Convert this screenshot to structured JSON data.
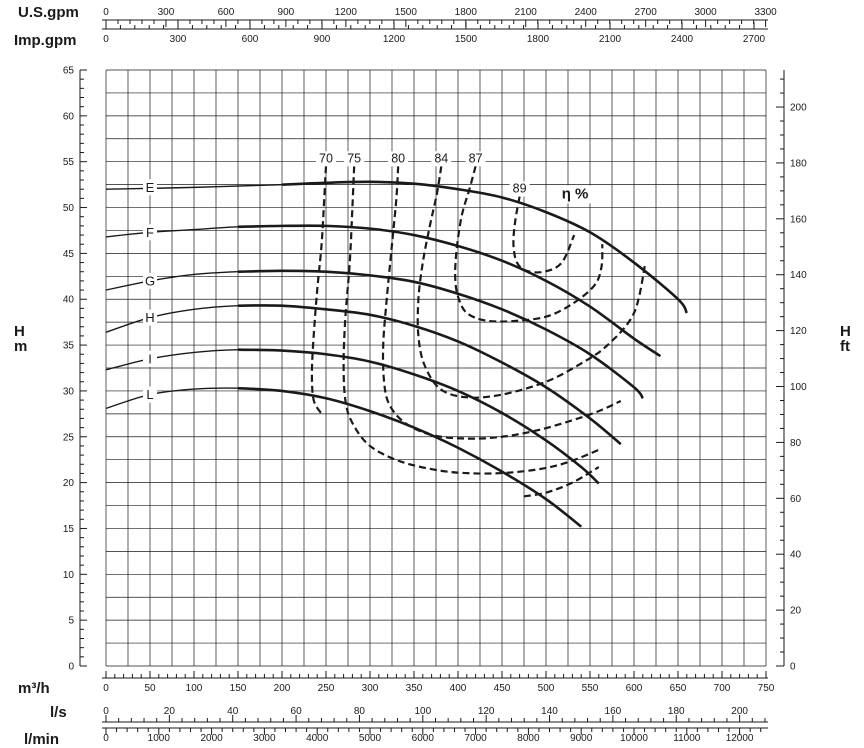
{
  "chart_data": {
    "type": "line",
    "title": "",
    "x_axis_bottom_main": {
      "unit": "m³/h",
      "range": [
        0,
        750
      ],
      "ticks": [
        "0",
        "50",
        "100",
        "150",
        "200",
        "250",
        "300",
        "350",
        "400",
        "450",
        "500",
        "550",
        "600",
        "650",
        "700",
        "750"
      ]
    },
    "x_axis_bottom_ls": {
      "unit": "l/s",
      "range": [
        0,
        208.33
      ],
      "ticks": [
        "0",
        "20",
        "40",
        "60",
        "80",
        "100",
        "120",
        "140",
        "160",
        "180",
        "200"
      ]
    },
    "x_axis_bottom_lmin": {
      "unit": "l/min",
      "range": [
        0,
        12500
      ],
      "ticks": [
        "0",
        "1000",
        "2000",
        "3000",
        "4000",
        "5000",
        "6000",
        "7000",
        "8000",
        "9000",
        "10000",
        "11000",
        "12000"
      ]
    },
    "x_axis_top_usgpm": {
      "unit": "U.S.gpm",
      "range": [
        0,
        3302
      ],
      "ticks": [
        "0",
        "300",
        "600",
        "900",
        "1200",
        "1500",
        "1800",
        "2100",
        "2400",
        "2700",
        "3000",
        "3300"
      ]
    },
    "x_axis_top_impgpm": {
      "unit": "Imp.gpm",
      "range": [
        0,
        2750
      ],
      "ticks": [
        "0",
        "300",
        "600",
        "900",
        "1200",
        "1500",
        "1800",
        "2100",
        "2400",
        "2700"
      ]
    },
    "y_axis_left": {
      "unit": "H\nm",
      "range": [
        0,
        65
      ],
      "ticks": [
        "0",
        "5",
        "10",
        "15",
        "20",
        "25",
        "30",
        "35",
        "40",
        "45",
        "50",
        "55",
        "60",
        "65"
      ]
    },
    "y_axis_right": {
      "unit": "H\nft",
      "range": [
        0,
        213.25
      ],
      "ticks": [
        "0",
        "20",
        "40",
        "60",
        "80",
        "100",
        "120",
        "140",
        "160",
        "180",
        "200"
      ]
    },
    "grid": true,
    "series": [
      {
        "name": "E",
        "x": [
          0,
          100,
          200,
          250,
          300,
          350,
          400,
          450,
          500,
          550,
          600,
          650,
          660
        ],
        "y": [
          52.0,
          52.2,
          52.5,
          52.7,
          52.8,
          52.6,
          52.0,
          51.1,
          49.5,
          47.3,
          44.0,
          40.0,
          38.5
        ]
      },
      {
        "name": "F",
        "x": [
          0,
          50,
          100,
          150,
          200,
          250,
          300,
          350,
          400,
          450,
          500,
          550,
          600,
          630
        ],
        "y": [
          46.8,
          47.3,
          47.6,
          47.9,
          48.0,
          48.0,
          47.7,
          47.0,
          45.8,
          44.2,
          42.0,
          39.2,
          35.7,
          33.8
        ]
      },
      {
        "name": "G",
        "x": [
          0,
          50,
          100,
          150,
          200,
          250,
          300,
          350,
          400,
          450,
          500,
          550,
          600,
          610
        ],
        "y": [
          41.0,
          42.0,
          42.7,
          43.0,
          43.1,
          43.0,
          42.6,
          41.9,
          40.6,
          38.9,
          36.7,
          34.0,
          30.4,
          29.2
        ]
      },
      {
        "name": "H",
        "x": [
          0,
          50,
          100,
          150,
          200,
          250,
          300,
          350,
          400,
          450,
          500,
          550,
          585
        ],
        "y": [
          36.4,
          38.0,
          38.9,
          39.3,
          39.3,
          38.9,
          38.3,
          37.1,
          35.4,
          33.1,
          30.4,
          27.0,
          24.2
        ]
      },
      {
        "name": "I",
        "x": [
          0,
          50,
          100,
          150,
          200,
          250,
          300,
          350,
          400,
          450,
          500,
          540,
          560
        ],
        "y": [
          32.3,
          33.5,
          34.2,
          34.5,
          34.4,
          34.0,
          33.2,
          31.8,
          30.0,
          27.6,
          24.6,
          21.7,
          19.9
        ]
      },
      {
        "name": "L",
        "x": [
          0,
          50,
          100,
          150,
          200,
          250,
          300,
          350,
          400,
          450,
          500,
          540
        ],
        "y": [
          28.1,
          29.6,
          30.2,
          30.3,
          30.0,
          29.2,
          27.8,
          26.0,
          23.8,
          21.2,
          18.2,
          15.2
        ]
      }
    ],
    "efficiency": {
      "title": "η %",
      "contours": [
        {
          "label": "70",
          "x": [
            250,
            248,
            245,
            240,
            236,
            234,
            236,
            245
          ],
          "y": [
            54.5,
            51.0,
            46.0,
            41.0,
            36.0,
            32.0,
            29.0,
            27.5
          ]
        },
        {
          "label": "75",
          "x": [
            282,
            280,
            277,
            272,
            270,
            272,
            280,
            300,
            335,
            380,
            420,
            460,
            500,
            530,
            563
          ],
          "y": [
            54.5,
            50.0,
            44.0,
            38.0,
            33.0,
            29.0,
            26.5,
            24.0,
            22.3,
            21.3,
            21.0,
            21.1,
            21.6,
            22.4,
            23.7
          ]
        },
        {
          "label": "80",
          "x": [
            332,
            330,
            325,
            319,
            315,
            316,
            322,
            340,
            370,
            410,
            450,
            490,
            530,
            560,
            585
          ],
          "y": [
            54.5,
            51.0,
            46.0,
            40.0,
            35.0,
            31.0,
            28.5,
            26.5,
            25.2,
            24.8,
            25.0,
            25.7,
            26.8,
            27.8,
            28.9
          ]
        },
        {
          "label": "84",
          "x": [
            381,
            376,
            368,
            360,
            355,
            355,
            362,
            380,
            410,
            450,
            500,
            540,
            570,
            600,
            613
          ],
          "y": [
            54.5,
            51.5,
            48.0,
            44.0,
            40.0,
            36.0,
            32.8,
            30.2,
            29.3,
            29.6,
            31.0,
            33.0,
            35.0,
            38.5,
            44.0
          ]
        },
        {
          "label": "87",
          "x": [
            420,
            413,
            404,
            398,
            397,
            401,
            410,
            430,
            460,
            500,
            530,
            555,
            563,
            564
          ],
          "y": [
            54.5,
            52.0,
            49.0,
            45.0,
            42.0,
            40.0,
            38.5,
            37.7,
            37.6,
            38.1,
            39.5,
            41.5,
            43.5,
            46.0
          ]
        },
        {
          "label": "89",
          "x": [
            470,
            465,
            463,
            467,
            478,
            498,
            518,
            532
          ],
          "y": [
            51.2,
            48.5,
            46.0,
            44.0,
            43.1,
            43.0,
            44.0,
            47.0
          ]
        },
        {
          "label": "",
          "x": [
            475,
            500,
            530,
            560
          ],
          "y": [
            18.5,
            18.9,
            20.0,
            21.7
          ]
        }
      ]
    }
  }
}
